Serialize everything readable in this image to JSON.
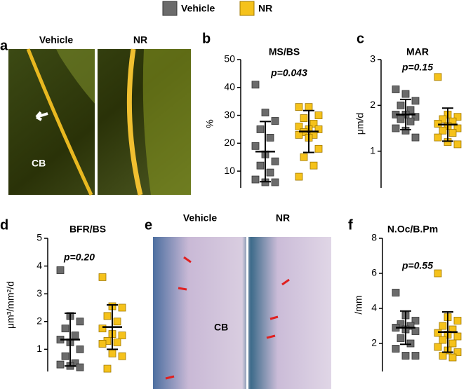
{
  "legend": [
    {
      "name": "Vehicle",
      "color": "#6b6b6b"
    },
    {
      "name": "NR",
      "color": "#f5c21b"
    }
  ],
  "figure": {
    "image_panels": [
      {
        "letter": "a",
        "labels": [
          "Vehicle",
          "NR"
        ],
        "annotation": "CB"
      },
      {
        "letter": "e",
        "labels": [
          "Vehicle",
          "NR"
        ],
        "annotation": "CB"
      }
    ]
  },
  "chart_data": [
    {
      "type": "dotplot",
      "panel": "b",
      "title": "MS/BS",
      "ylabel": "%",
      "annotation": "p=0.043",
      "ylim": [
        4,
        50
      ],
      "yticks": [
        10,
        20,
        30,
        40,
        50
      ],
      "series": [
        {
          "color": "#6b6b6b",
          "values": [
            41,
            31,
            28,
            25,
            22,
            19,
            16,
            13.5,
            12,
            9.5,
            7,
            6,
            6
          ],
          "mean": 17,
          "sd": 10.8
        },
        {
          "color": "#f5c21b",
          "values": [
            33,
            33,
            30,
            29,
            27,
            26,
            25,
            25,
            24,
            23,
            23,
            22,
            18,
            15,
            12,
            8
          ],
          "mean": 24.2,
          "sd": 7.5
        }
      ]
    },
    {
      "type": "dotplot",
      "panel": "c",
      "title": "MAR",
      "ylabel": "μm/d",
      "annotation": "p=0.15",
      "ylim": [
        0.2,
        3
      ],
      "yticks": [
        1,
        2,
        3
      ],
      "series": [
        {
          "color": "#6b6b6b",
          "values": [
            2.35,
            2.25,
            2.1,
            2.0,
            1.9,
            1.8,
            1.8,
            1.75,
            1.7,
            1.65,
            1.5,
            1.45,
            1.3
          ],
          "mean": 1.8,
          "sd": 0.33
        },
        {
          "color": "#f5c21b",
          "values": [
            2.62,
            1.8,
            1.75,
            1.7,
            1.65,
            1.6,
            1.55,
            1.5,
            1.45,
            1.4,
            1.3,
            1.2,
            1.15
          ],
          "mean": 1.58,
          "sd": 0.36
        }
      ]
    },
    {
      "type": "dotplot",
      "panel": "d",
      "title": "BFR/BS",
      "ylabel": "μm³/mm²/d",
      "annotation": "p=0.20",
      "ylim": [
        0.2,
        5
      ],
      "yticks": [
        1,
        2,
        3,
        4,
        5
      ],
      "series": [
        {
          "color": "#6b6b6b",
          "values": [
            3.85,
            2.2,
            2.0,
            1.75,
            1.5,
            1.35,
            1.25,
            1.0,
            0.75,
            0.5,
            0.45,
            0.4,
            0.35
          ],
          "mean": 1.35,
          "sd": 0.95
        },
        {
          "color": "#f5c21b",
          "values": [
            3.6,
            2.55,
            2.5,
            2.2,
            2.0,
            1.75,
            1.55,
            1.5,
            1.3,
            1.25,
            1.2,
            0.85,
            0.75,
            0.3
          ],
          "mean": 1.8,
          "sd": 0.8
        }
      ]
    },
    {
      "type": "dotplot",
      "panel": "f",
      "title": "N.Oc/B.Pm",
      "ylabel": "/mm",
      "annotation": "p=0.55",
      "ylim": [
        0.4,
        8
      ],
      "yticks": [
        2,
        4,
        6,
        8
      ],
      "series": [
        {
          "color": "#6b6b6b",
          "values": [
            4.9,
            3.6,
            3.3,
            3.1,
            3.0,
            2.9,
            2.8,
            2.7,
            2.3,
            2.0,
            1.7,
            1.3,
            1.3
          ],
          "mean": 2.9,
          "sd": 0.95
        },
        {
          "color": "#f5c21b",
          "values": [
            6.0,
            3.5,
            3.3,
            3.0,
            2.8,
            2.6,
            2.5,
            2.4,
            2.2,
            2.0,
            1.8,
            1.6,
            1.5,
            1.3,
            1.2
          ],
          "mean": 2.65,
          "sd": 1.15
        }
      ]
    }
  ]
}
